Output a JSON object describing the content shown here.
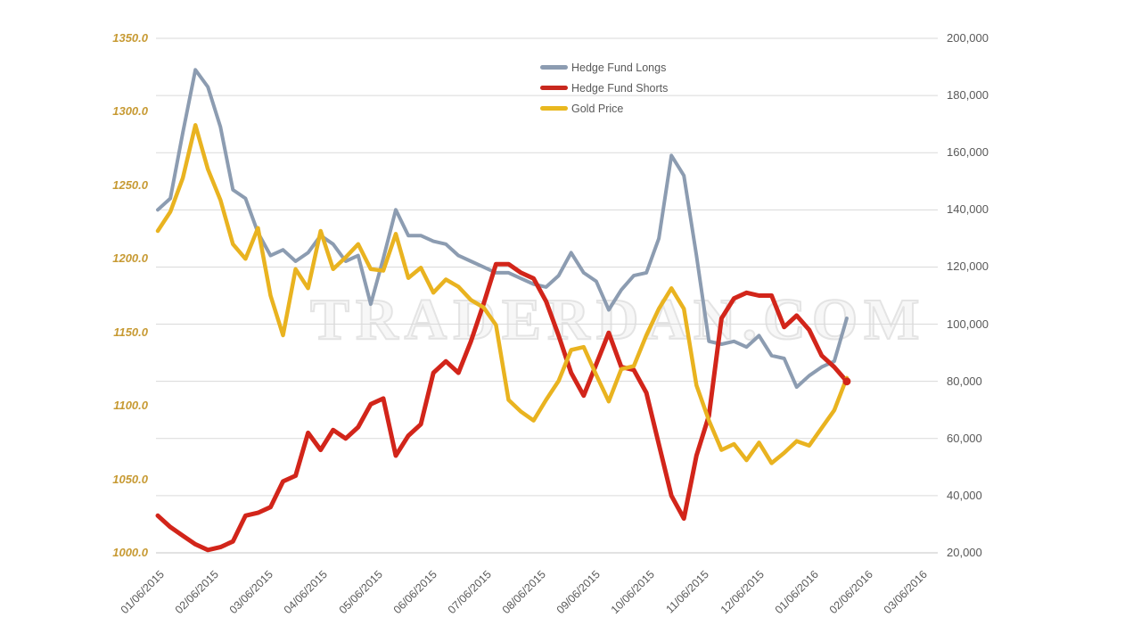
{
  "watermark": "TRADERDAN.COM",
  "legend": {
    "items": [
      {
        "label": "Hedge Fund Longs",
        "color": "#8c9cb1"
      },
      {
        "label": "Hedge Fund Shorts",
        "color": "#c8281e"
      },
      {
        "label": "Gold Price",
        "color": "#e9b81f"
      }
    ]
  },
  "chart_data": {
    "type": "line",
    "title": "",
    "grid": "horizontal-only",
    "legend_position": "top-center",
    "left_axis": {
      "label": "",
      "min": 1000,
      "max": 1350,
      "tick_color": "#c79a33",
      "ticks": [
        "1350.0",
        "1300.0",
        "1250.0",
        "1200.0",
        "1150.0",
        "1100.0",
        "1050.0",
        "1000.0"
      ]
    },
    "right_axis": {
      "label": "",
      "min": 20000,
      "max": 200000,
      "tick_color": "#595959",
      "ticks": [
        "200,000",
        "180,000",
        "160,000",
        "140,000",
        "120,000",
        "100,000",
        "80,000",
        "60,000",
        "40,000",
        "20,000"
      ]
    },
    "x_axis": {
      "tick_color": "#595959",
      "labels": [
        "01/06/2015",
        "02/06/2015",
        "03/06/2015",
        "04/06/2015",
        "05/06/2015",
        "06/06/2015",
        "07/06/2015",
        "08/06/2015",
        "09/06/2015",
        "10/06/2015",
        "11/06/2015",
        "12/06/2015",
        "01/06/2016",
        "02/06/2016",
        "03/06/2016"
      ]
    },
    "series": [
      {
        "name": "Hedge Fund Longs",
        "axis": "right",
        "color": "#8c9cb1",
        "width": 4,
        "values": [
          140000,
          144000,
          167000,
          189000,
          183000,
          169000,
          147000,
          144000,
          132000,
          124000,
          126000,
          122000,
          125000,
          131000,
          128000,
          122000,
          124000,
          107000,
          123000,
          140000,
          131000,
          131000,
          129000,
          128000,
          124000,
          122000,
          120000,
          118000,
          118000,
          116000,
          114000,
          113000,
          117000,
          125000,
          118000,
          115000,
          105000,
          112000,
          117000,
          118000,
          130000,
          159000,
          152000,
          124000,
          94000,
          93000,
          94000,
          92000,
          96000,
          89000,
          88000,
          78000,
          82000,
          85000,
          87000,
          102000
        ]
      },
      {
        "name": "Hedge Fund Shorts",
        "axis": "right",
        "color": "#d2251a",
        "width": 5,
        "end_dot": true,
        "values": [
          33000,
          29000,
          26000,
          23000,
          21000,
          22000,
          24000,
          33000,
          34000,
          36000,
          45000,
          47000,
          62000,
          56000,
          63000,
          60000,
          64000,
          72000,
          74000,
          54000,
          61000,
          65000,
          83000,
          87000,
          83000,
          94000,
          107000,
          121000,
          121000,
          118000,
          116000,
          108000,
          96000,
          83000,
          75000,
          86000,
          97000,
          85000,
          84000,
          76000,
          58000,
          40000,
          32000,
          54000,
          68000,
          102000,
          109000,
          111000,
          110000,
          110000,
          99000,
          103000,
          98000,
          89000,
          85000,
          80000
        ]
      },
      {
        "name": "Gold Price",
        "axis": "left",
        "color": "#e9b320",
        "width": 4.5,
        "values": [
          1219,
          1232,
          1255,
          1291,
          1261,
          1240,
          1210,
          1200,
          1221,
          1175,
          1148,
          1193,
          1180,
          1219,
          1193,
          1201,
          1210,
          1193,
          1192,
          1217,
          1187,
          1194,
          1177,
          1186,
          1181,
          1172,
          1167,
          1155,
          1104,
          1096,
          1090,
          1104,
          1117,
          1138,
          1140,
          1121,
          1103,
          1125,
          1127,
          1148,
          1166,
          1180,
          1166,
          1114,
          1090,
          1070,
          1074,
          1063,
          1075,
          1061,
          1068,
          1076,
          1073,
          1085,
          1097,
          1119
        ]
      }
    ],
    "points_are_weekly": true,
    "first_point_at_label": "01/06/2015",
    "last_point_near_label": "02/06/2016"
  }
}
